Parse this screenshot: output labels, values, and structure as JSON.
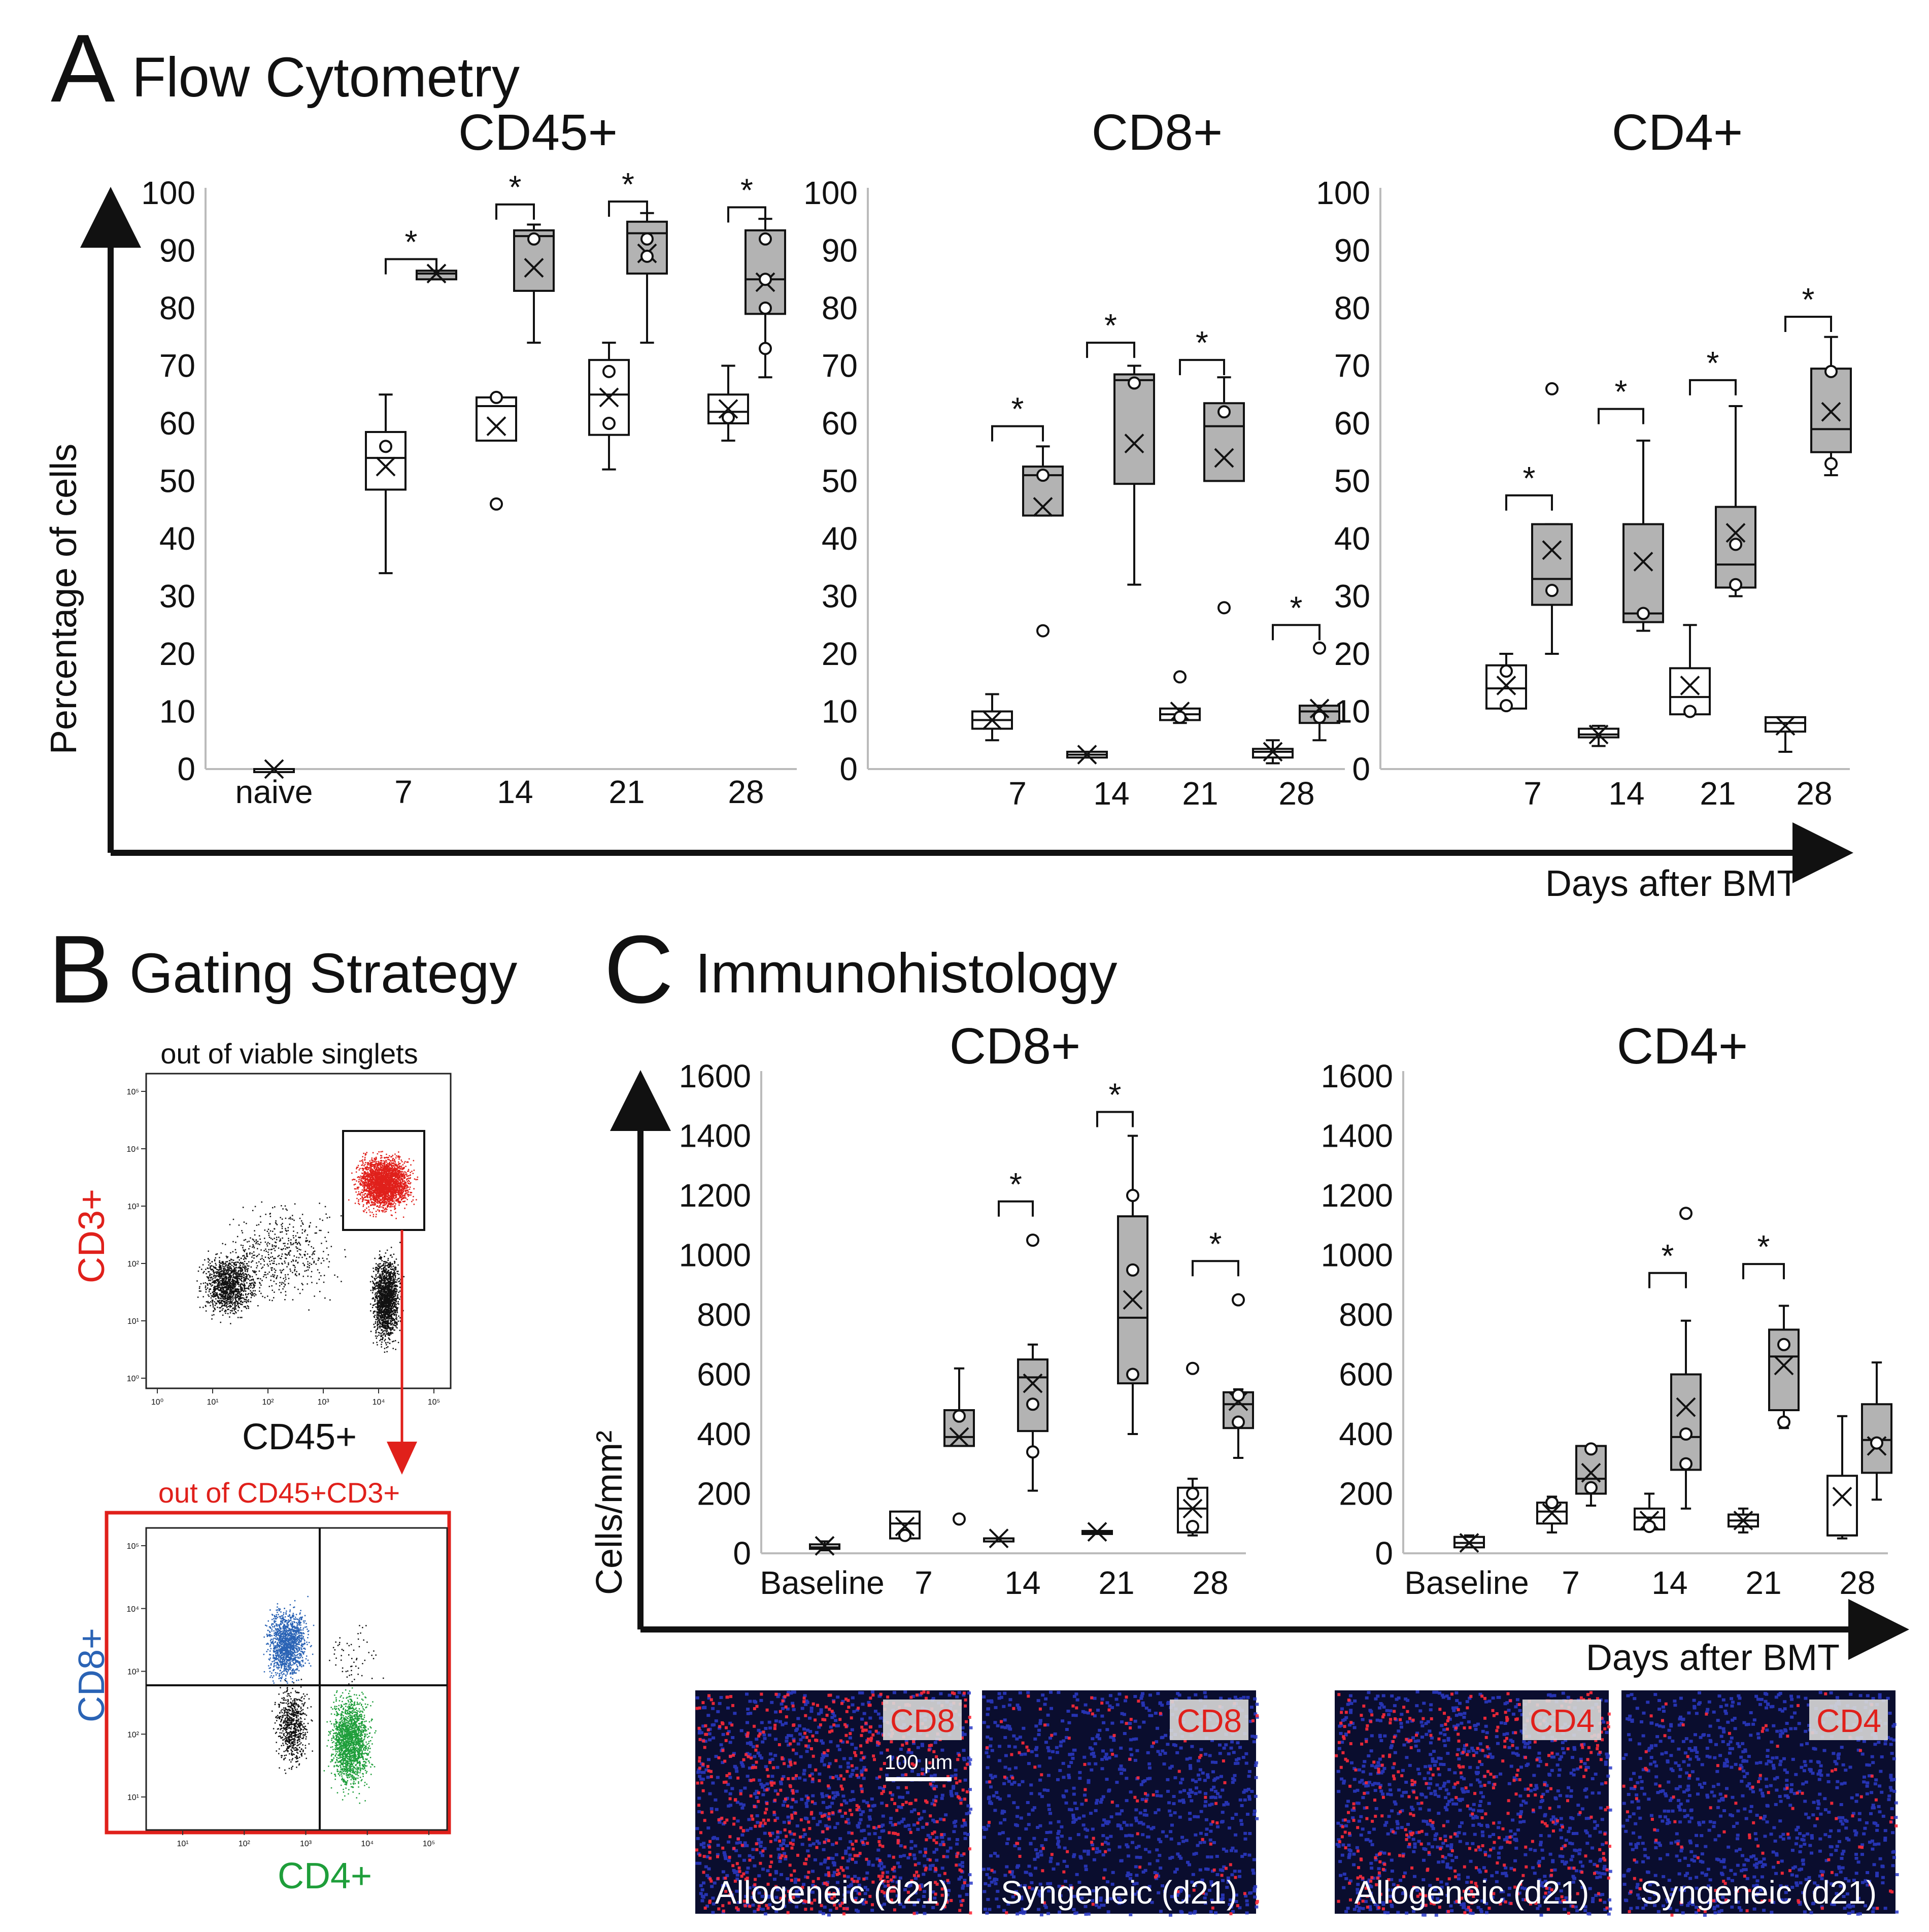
{
  "colors": {
    "allogeneic_fill": "#b3b3b3",
    "syngeneic_fill": "#ffffff",
    "cd3": "#e0201b",
    "cd8": "#2a63b5",
    "cd4": "#1e9e3a",
    "nuclei": "#2b3bc9"
  },
  "panel_a": {
    "letter": "A",
    "title": "Flow Cytometry",
    "ylabel": "Percentage of cells",
    "xlabel": "Days after BMT"
  },
  "panel_b": {
    "letter": "B",
    "title": "Gating Strategy",
    "gate1_title": "out of viable singlets",
    "gate1_xlabel": "CD45+",
    "gate1_ylabel": "CD3+",
    "gate2_title": "out of CD45+CD3+",
    "gate2_xlabel": "CD4+",
    "gate2_ylabel": "CD8+",
    "gate1_xticks": [
      "10⁰",
      "10¹",
      "10²",
      "10³",
      "10⁴",
      "10⁵"
    ],
    "gate1_yticks": [
      "10⁰",
      "10¹",
      "10²",
      "10³",
      "10⁴",
      "10⁵"
    ],
    "gate2_xticks": [
      "10¹",
      "10²",
      "10³",
      "10⁴",
      "10⁵"
    ],
    "gate2_yticks": [
      "10¹",
      "10²",
      "10³",
      "10⁴",
      "10⁵"
    ]
  },
  "panel_c": {
    "letter": "C",
    "title": "Immunohistology",
    "ylabel": "Cells/mm²",
    "xlabel": "Days after BMT",
    "micrographs": [
      {
        "badge": "CD8",
        "caption": "Allogeneic (d21)",
        "scale": "100 µm",
        "density": 0.9
      },
      {
        "badge": "CD8",
        "caption": "Syngeneic (d21)",
        "scale": "",
        "density": 0.15
      },
      {
        "badge": "CD4",
        "caption": "Allogeneic (d21)",
        "scale": "",
        "density": 0.6
      },
      {
        "badge": "CD4",
        "caption": "Syngeneic (d21)",
        "scale": "",
        "density": 0.15
      }
    ]
  },
  "chart_data": [
    {
      "type": "box",
      "title": "CD45+",
      "categories": [
        "naive",
        "7",
        "14",
        "21",
        "28"
      ],
      "ylim": [
        0,
        100
      ],
      "yticks": [
        0,
        10,
        20,
        30,
        40,
        50,
        60,
        70,
        80,
        90,
        100
      ],
      "series": [
        {
          "group": "syngeneic",
          "boxes": [
            {
              "cat": "naive",
              "min": 0,
              "q1": 0,
              "median": 0,
              "q3": 0,
              "max": 0,
              "mean": 0,
              "points": []
            },
            {
              "cat": "7",
              "min": 34,
              "q1": 48.5,
              "median": 54,
              "q3": 58.5,
              "max": 65,
              "mean": 52.5,
              "points": [
                56
              ]
            },
            {
              "cat": "14",
              "min": 57,
              "q1": 57,
              "median": 63,
              "q3": 64.5,
              "max": 64.5,
              "mean": 59.5,
              "points": [
                46,
                64.5
              ]
            },
            {
              "cat": "21",
              "min": 52,
              "q1": 58,
              "median": 65,
              "q3": 71,
              "max": 74,
              "mean": 64.5,
              "points": [
                60,
                69
              ]
            },
            {
              "cat": "28",
              "min": 57,
              "q1": 60,
              "median": 62,
              "q3": 65,
              "max": 70,
              "mean": 62.5,
              "points": [
                61
              ]
            }
          ]
        },
        {
          "group": "allogeneic",
          "boxes": [
            {
              "cat": "naive",
              "min": null,
              "q1": null,
              "median": null,
              "q3": null,
              "max": null,
              "mean": null,
              "points": []
            },
            {
              "cat": "7",
              "min": 85,
              "q1": 85,
              "median": 86,
              "q3": 86.5,
              "max": 86.5,
              "mean": 86,
              "points": []
            },
            {
              "cat": "14",
              "min": 74,
              "q1": 83,
              "median": 92.5,
              "q3": 93.5,
              "max": 94.5,
              "mean": 87,
              "points": [
                92
              ]
            },
            {
              "cat": "21",
              "min": 74,
              "q1": 86,
              "median": 93,
              "q3": 95,
              "max": 96.5,
              "mean": 89.5,
              "points": [
                92,
                89
              ]
            },
            {
              "cat": "28",
              "min": 68,
              "q1": 79,
              "median": 85,
              "q3": 93.5,
              "max": 95.5,
              "mean": 84.5,
              "points": [
                92,
                80,
                73,
                85
              ]
            }
          ]
        }
      ],
      "significance": [
        {
          "cat": "7",
          "y": 88.5,
          "label": "*"
        },
        {
          "cat": "14",
          "y": 98,
          "label": "*"
        },
        {
          "cat": "21",
          "y": 98.5,
          "label": "*"
        },
        {
          "cat": "28",
          "y": 97.5,
          "label": "*"
        }
      ]
    },
    {
      "type": "box",
      "title": "CD8+",
      "categories": [
        "7",
        "14",
        "21",
        "28"
      ],
      "ylim": [
        0,
        100
      ],
      "yticks": [
        0,
        10,
        20,
        30,
        40,
        50,
        60,
        70,
        80,
        90,
        100
      ],
      "series": [
        {
          "group": "syngeneic",
          "boxes": [
            {
              "cat": "7",
              "min": 5,
              "q1": 7,
              "median": 8.5,
              "q3": 10,
              "max": 13,
              "mean": 8.5,
              "points": []
            },
            {
              "cat": "14",
              "min": 2,
              "q1": 2,
              "median": 2.5,
              "q3": 3,
              "max": 3,
              "mean": 2.5,
              "points": []
            },
            {
              "cat": "21",
              "min": 8,
              "q1": 8.5,
              "median": 9.5,
              "q3": 10.5,
              "max": 10.5,
              "mean": 10,
              "points": [
                16,
                9
              ]
            },
            {
              "cat": "28",
              "min": 1,
              "q1": 2,
              "median": 3,
              "q3": 3.5,
              "max": 5,
              "mean": 3,
              "points": []
            }
          ]
        },
        {
          "group": "allogeneic",
          "boxes": [
            {
              "cat": "7",
              "min": 44,
              "q1": 44,
              "median": 51,
              "q3": 52.5,
              "max": 56,
              "mean": 45.5,
              "points": [
                24,
                51
              ]
            },
            {
              "cat": "14",
              "min": 32,
              "q1": 49.5,
              "median": 67.5,
              "q3": 68.5,
              "max": 70,
              "mean": 56.5,
              "points": [
                67
              ]
            },
            {
              "cat": "21",
              "min": 50,
              "q1": 50,
              "median": 59.5,
              "q3": 63.5,
              "max": 68,
              "mean": 54,
              "points": [
                28,
                62
              ]
            },
            {
              "cat": "28",
              "min": 5,
              "q1": 8,
              "median": 10,
              "q3": 11,
              "max": 11,
              "mean": 10.5,
              "points": [
                21,
                9
              ]
            }
          ]
        }
      ],
      "significance": [
        {
          "cat": "7",
          "y": 59.5,
          "label": "*"
        },
        {
          "cat": "14",
          "y": 74,
          "label": "*"
        },
        {
          "cat": "21",
          "y": 71,
          "label": "*"
        },
        {
          "cat": "28",
          "y": 25,
          "label": "*"
        }
      ]
    },
    {
      "type": "box",
      "title": "CD4+",
      "categories": [
        "7",
        "14",
        "21",
        "28"
      ],
      "ylim": [
        0,
        100
      ],
      "yticks": [
        0,
        10,
        20,
        30,
        40,
        50,
        60,
        70,
        80,
        90,
        100
      ],
      "series": [
        {
          "group": "syngeneic",
          "boxes": [
            {
              "cat": "7",
              "min": 10.5,
              "q1": 10.5,
              "median": 14,
              "q3": 18,
              "max": 20,
              "mean": 14.5,
              "points": [
                17,
                11
              ]
            },
            {
              "cat": "14",
              "min": 4,
              "q1": 5.5,
              "median": 6,
              "q3": 7,
              "max": 7.5,
              "mean": 6,
              "points": []
            },
            {
              "cat": "21",
              "min": 9.5,
              "q1": 9.5,
              "median": 12.5,
              "q3": 17.5,
              "max": 25,
              "mean": 14.5,
              "points": [
                10
              ]
            },
            {
              "cat": "28",
              "min": 3,
              "q1": 6.5,
              "median": 8,
              "q3": 9,
              "max": 9,
              "mean": 7.5,
              "points": []
            }
          ]
        },
        {
          "group": "allogeneic",
          "boxes": [
            {
              "cat": "7",
              "min": 20,
              "q1": 28.5,
              "median": 33,
              "q3": 42.5,
              "max": 42.5,
              "mean": 38,
              "points": [
                66,
                31
              ]
            },
            {
              "cat": "14",
              "min": 24,
              "q1": 25.5,
              "median": 27,
              "q3": 42.5,
              "max": 57,
              "mean": 36,
              "points": [
                27
              ]
            },
            {
              "cat": "21",
              "min": 30,
              "q1": 31.5,
              "median": 35.5,
              "q3": 45.5,
              "max": 63,
              "mean": 41,
              "points": [
                32,
                39
              ]
            },
            {
              "cat": "28",
              "min": 51,
              "q1": 55,
              "median": 59,
              "q3": 69.5,
              "max": 75,
              "mean": 62,
              "points": [
                69,
                53
              ]
            }
          ]
        }
      ],
      "significance": [
        {
          "cat": "7",
          "y": 47.5,
          "label": "*"
        },
        {
          "cat": "14",
          "y": 62.5,
          "label": "*"
        },
        {
          "cat": "21",
          "y": 67.5,
          "label": "*"
        },
        {
          "cat": "28",
          "y": 78.5,
          "label": "*"
        }
      ]
    },
    {
      "type": "box",
      "title": "CD8+",
      "categories": [
        "Baseline",
        "7",
        "14",
        "21",
        "28"
      ],
      "ylim": [
        0,
        1600
      ],
      "yticks": [
        0,
        200,
        400,
        600,
        800,
        1000,
        1200,
        1400,
        1600
      ],
      "series": [
        {
          "group": "syngeneic",
          "boxes": [
            {
              "cat": "Baseline",
              "min": 10,
              "q1": 15,
              "median": 20,
              "q3": 30,
              "max": 40,
              "mean": 25,
              "points": []
            },
            {
              "cat": "7",
              "min": 50,
              "q1": 50,
              "median": 100,
              "q3": 140,
              "max": 140,
              "mean": 90,
              "points": [
                60
              ]
            },
            {
              "cat": "14",
              "min": 50,
              "q1": 50,
              "median": 50,
              "q3": 50,
              "max": 50,
              "mean": 50,
              "points": []
            },
            {
              "cat": "21",
              "min": 70,
              "q1": 70,
              "median": 70,
              "q3": 75,
              "max": 75,
              "mean": 72,
              "points": []
            },
            {
              "cat": "28",
              "min": 60,
              "q1": 70,
              "median": 150,
              "q3": 220,
              "max": 250,
              "mean": 150,
              "points": [
                200,
                90,
                620
              ]
            }
          ]
        },
        {
          "group": "allogeneic",
          "boxes": [
            {
              "cat": "Baseline",
              "min": null,
              "q1": null,
              "median": null,
              "q3": null,
              "max": null,
              "mean": null,
              "points": []
            },
            {
              "cat": "7",
              "min": 360,
              "q1": 360,
              "median": 390,
              "q3": 480,
              "max": 620,
              "mean": 390,
              "points": [
                115,
                460
              ]
            },
            {
              "cat": "14",
              "min": 210,
              "q1": 410,
              "median": 590,
              "q3": 650,
              "max": 700,
              "mean": 570,
              "points": [
                1050,
                340,
                500
              ]
            },
            {
              "cat": "21",
              "min": 400,
              "q1": 570,
              "median": 790,
              "q3": 1130,
              "max": 1400,
              "mean": 850,
              "points": [
                1200,
                950,
                600
              ]
            },
            {
              "cat": "28",
              "min": 320,
              "q1": 420,
              "median": 500,
              "q3": 540,
              "max": 550,
              "mean": 510,
              "points": [
                850,
                440,
                530
              ]
            }
          ]
        }
      ],
      "significance": [
        {
          "cat": "14",
          "y": 1180,
          "label": "*"
        },
        {
          "cat": "21",
          "y": 1480,
          "label": "*"
        },
        {
          "cat": "28",
          "y": 980,
          "label": "*"
        }
      ]
    },
    {
      "type": "box",
      "title": "CD4+",
      "categories": [
        "Baseline",
        "7",
        "14",
        "21",
        "28"
      ],
      "ylim": [
        0,
        1600
      ],
      "yticks": [
        0,
        200,
        400,
        600,
        800,
        1000,
        1200,
        1400,
        1600
      ],
      "series": [
        {
          "group": "syngeneic",
          "boxes": [
            {
              "cat": "Baseline",
              "min": 20,
              "q1": 20,
              "median": 35,
              "q3": 55,
              "max": 60,
              "mean": 35,
              "points": []
            },
            {
              "cat": "7",
              "min": 70,
              "q1": 100,
              "median": 140,
              "q3": 170,
              "max": 190,
              "mean": 135,
              "points": [
                170
              ]
            },
            {
              "cat": "14",
              "min": 80,
              "q1": 80,
              "median": 120,
              "q3": 150,
              "max": 200,
              "mean": 110,
              "points": [
                90
              ]
            },
            {
              "cat": "21",
              "min": 70,
              "q1": 90,
              "median": 110,
              "q3": 130,
              "max": 150,
              "mean": 110,
              "points": []
            },
            {
              "cat": "28",
              "min": 50,
              "q1": 60,
              "median": 60,
              "q3": 260,
              "max": 460,
              "mean": 190,
              "points": []
            }
          ]
        },
        {
          "group": "allogeneic",
          "boxes": [
            {
              "cat": "Baseline",
              "min": null,
              "q1": null,
              "median": null,
              "q3": null,
              "max": null,
              "mean": null,
              "points": []
            },
            {
              "cat": "7",
              "min": 160,
              "q1": 200,
              "median": 250,
              "q3": 360,
              "max": 360,
              "mean": 270,
              "points": [
                350,
                220
              ]
            },
            {
              "cat": "14",
              "min": 150,
              "q1": 280,
              "median": 390,
              "q3": 600,
              "max": 780,
              "mean": 490,
              "points": [
                1140,
                400,
                300
              ]
            },
            {
              "cat": "21",
              "min": 420,
              "q1": 480,
              "median": 660,
              "q3": 750,
              "max": 830,
              "mean": 630,
              "points": [
                700,
                440
              ]
            },
            {
              "cat": "28",
              "min": 180,
              "q1": 270,
              "median": 380,
              "q3": 500,
              "max": 640,
              "mean": 360,
              "points": [
                370
              ]
            }
          ]
        }
      ],
      "significance": [
        {
          "cat": "14",
          "y": 940,
          "label": "*"
        },
        {
          "cat": "21",
          "y": 970,
          "label": "*"
        }
      ]
    }
  ]
}
